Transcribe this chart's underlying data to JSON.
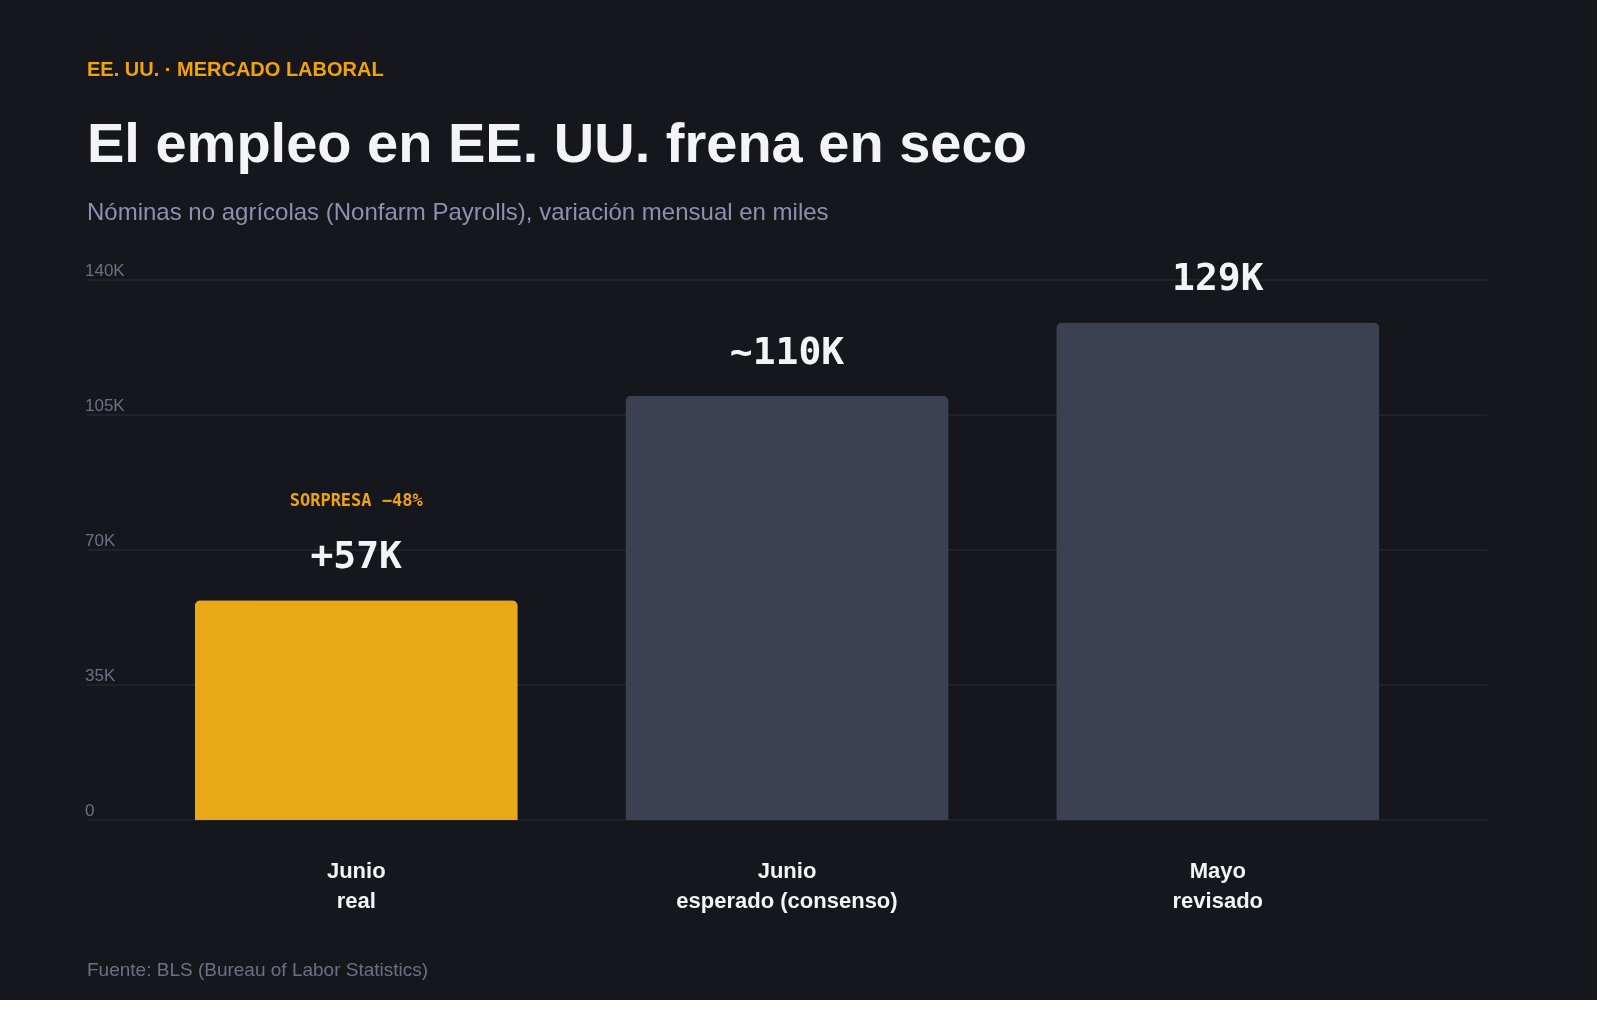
{
  "chart_data": {
    "type": "bar",
    "title": "El empleo en EE. UU. frena en seco",
    "subtitle": "Nóminas no agrícolas (Nonfarm Payrolls), variación mensual en miles",
    "categories": [
      "Junio\nreal",
      "Junio\nesperado (consenso)",
      "Mayo\nrevisado"
    ],
    "values": [
      57,
      110,
      129
    ],
    "colors": [
      "#e9a816",
      "#3b4053",
      "#3b4053"
    ],
    "value_labels": [
      "+57K",
      "~110K",
      "129K"
    ],
    "ylim": [
      0,
      140
    ],
    "yticks": [
      0,
      {
        "value": 35,
        "label": "35K"
      },
      {
        "value": 70,
        "label": "70K"
      },
      {
        "value": 105,
        "label": "105K"
      },
      {
        "value": 140,
        "label": "140K"
      }
    ],
    "grid": "y",
    "annotations": [
      "EE. UU. · MERCADO LABORAL",
      "SORPRESA −48%",
      "Fuente: BLS (Bureau of Labor Statistics)"
    ]
  }
}
